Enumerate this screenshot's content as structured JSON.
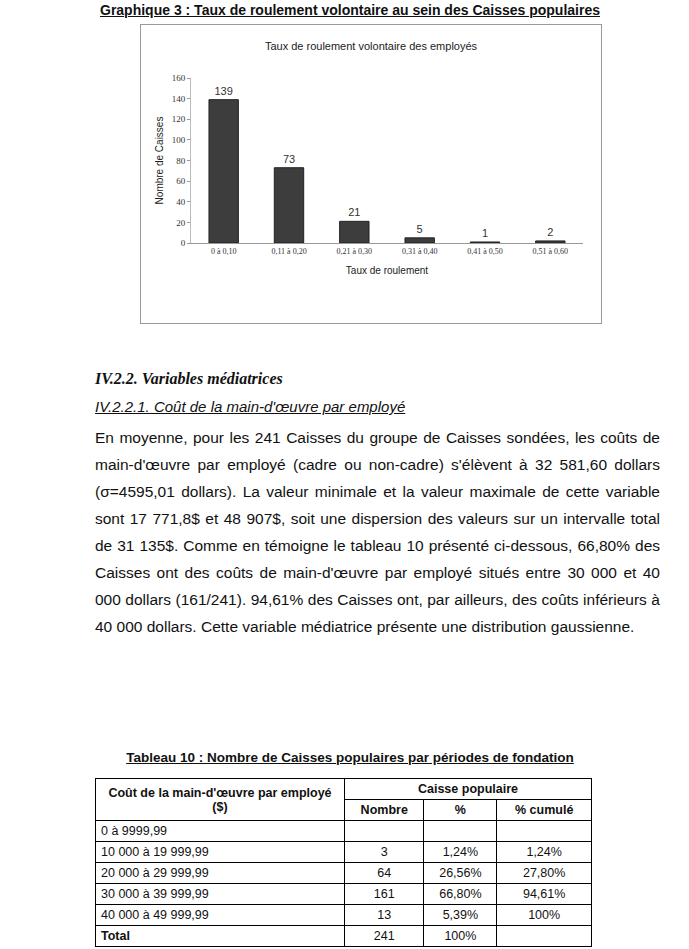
{
  "header": {
    "title": "Graphique 3 : Taux de roulement volontaire au sein des Caisses populaires"
  },
  "chart_data": {
    "type": "bar",
    "title": "Taux de roulement volontaire des employés",
    "x_label": "Taux de roulement",
    "y_label": "Nombre de Caisses",
    "categories": [
      "0 à 0,10",
      "0,11 à 0,20",
      "0,21 à 0,30",
      "0,31 à 0,40",
      "0,41 à 0,50",
      "0,51 à 0,60"
    ],
    "values": [
      139,
      73,
      21,
      5,
      1,
      2
    ],
    "color": "#3d3d3d",
    "ylim": [
      0,
      160
    ],
    "yticks": [
      0,
      20,
      40,
      60,
      80,
      100,
      120,
      140,
      160
    ],
    "grid": false,
    "data_labels": true
  },
  "section": {
    "heading": "IV.2.2. Variables médiatrices",
    "subheading": "IV.2.2.1. Coût de la main-d'œuvre par employé",
    "paragraph": "En moyenne, pour les 241 Caisses du groupe de Caisses sondées, les coûts de main-d'œuvre par employé (cadre ou non-cadre) s'élèvent à 32 581,60 dollars (σ=4595,01 dollars). La valeur minimale et la valeur maximale de cette variable sont 17 771,8$ et 48 907$, soit une dispersion des valeurs sur un intervalle total de 31 135$. Comme en témoigne le tableau 10 présenté ci-dessous, 66,80% des Caisses ont des coûts de main-d'œuvre par employé situés entre 30 000 et 40 000 dollars (161/241). 94,61% des Caisses ont, par ailleurs, des coûts inférieurs à 40 000 dollars. Cette variable médiatrice présente une distribution gaussienne."
  },
  "table": {
    "title": "Tableau 10 : Nombre de Caisses populaires par périodes de fondation",
    "header": {
      "row_label": "Coût de la main-d'œuvre par employé ($)",
      "group": "Caisse populaire",
      "columns": [
        "Nombre",
        "%",
        "% cumulé"
      ]
    },
    "rows": [
      [
        "0 à 9999,99",
        null,
        null,
        null
      ],
      [
        "10 000 à 19 999,99",
        "3",
        "1,24%",
        "1,24%"
      ],
      [
        "20 000 à 29 999,99",
        "64",
        "26,56%",
        "27,80%"
      ],
      [
        "30 000 à 39 999,99",
        "161",
        "66,80%",
        "94,61%"
      ],
      [
        "40 000 à 49 999,99",
        "13",
        "5,39%",
        "100%"
      ],
      [
        "Total",
        "241",
        "100%",
        null
      ]
    ]
  }
}
